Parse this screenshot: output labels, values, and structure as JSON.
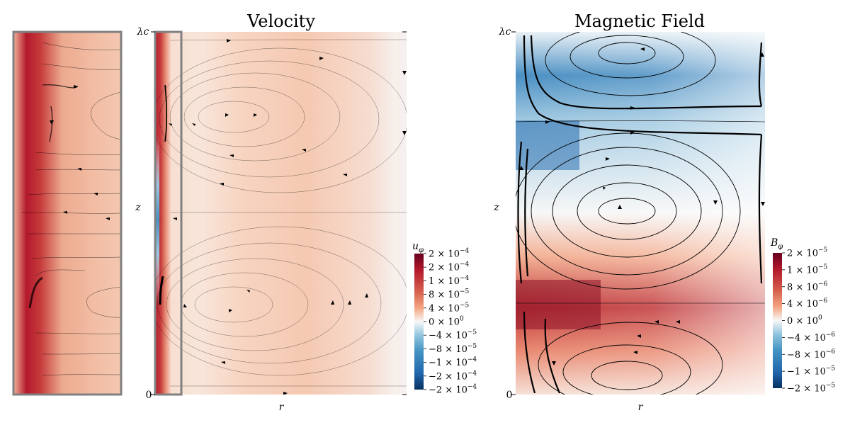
{
  "chart_data": [
    {
      "type": "heatmap",
      "panel": "inset",
      "quantity": "u_phi",
      "description_of_region": "zoom of near-axis region of Velocity panel",
      "colormap": "RdBu_r",
      "streamlines": true
    },
    {
      "type": "heatmap",
      "title": "Velocity",
      "xlabel": "r",
      "ylabel": "z",
      "y_ticks": [
        "0",
        "λc"
      ],
      "colorbar": {
        "label": "u",
        "label_sub": "φ",
        "ticks": [
          {
            "m": "2",
            "e": "-4",
            "neg": false
          },
          {
            "m": "2",
            "e": "-4",
            "neg": false
          },
          {
            "m": "1",
            "e": "-4",
            "neg": false
          },
          {
            "m": "8",
            "e": "-5",
            "neg": false
          },
          {
            "m": "4",
            "e": "-5",
            "neg": false
          },
          {
            "m": "0",
            "e": "0",
            "neg": false
          },
          {
            "m": "4",
            "e": "-5",
            "neg": true
          },
          {
            "m": "8",
            "e": "-5",
            "neg": true
          },
          {
            "m": "1",
            "e": "-4",
            "neg": true
          },
          {
            "m": "2",
            "e": "-4",
            "neg": true
          },
          {
            "m": "2",
            "e": "-4",
            "neg": true
          }
        ]
      },
      "colormap": "RdBu_r",
      "streamlines": true
    },
    {
      "type": "heatmap",
      "title": "Magnetic Field",
      "xlabel": "r",
      "ylabel": "z",
      "y_ticks": [
        "0",
        "λc"
      ],
      "colorbar": {
        "label": "B",
        "label_sub": "φ",
        "ticks": [
          {
            "m": "2",
            "e": "-5",
            "neg": false
          },
          {
            "m": "1",
            "e": "-5",
            "neg": false
          },
          {
            "m": "8",
            "e": "-6",
            "neg": false
          },
          {
            "m": "4",
            "e": "-6",
            "neg": false
          },
          {
            "m": "0",
            "e": "0",
            "neg": false
          },
          {
            "m": "4",
            "e": "-6",
            "neg": true
          },
          {
            "m": "8",
            "e": "-6",
            "neg": true
          },
          {
            "m": "1",
            "e": "-5",
            "neg": true
          },
          {
            "m": "2",
            "e": "-5",
            "neg": true
          }
        ]
      },
      "colormap": "RdBu_r",
      "streamlines": true
    }
  ]
}
